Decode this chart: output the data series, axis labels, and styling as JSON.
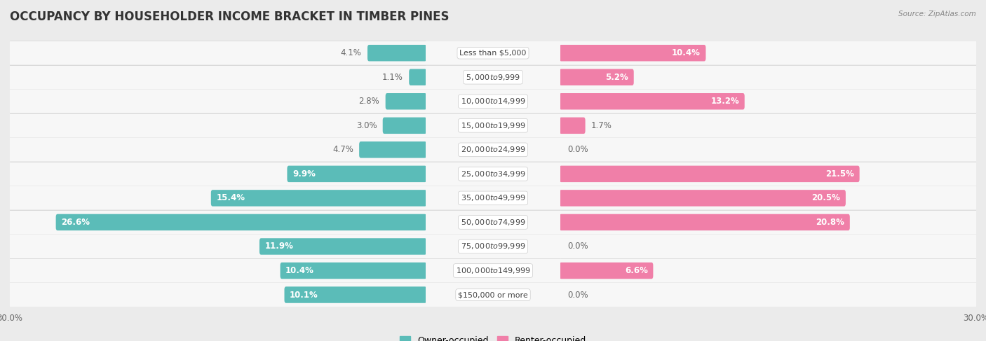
{
  "title": "OCCUPANCY BY HOUSEHOLDER INCOME BRACKET IN TIMBER PINES",
  "source": "Source: ZipAtlas.com",
  "categories": [
    "Less than $5,000",
    "$5,000 to $9,999",
    "$10,000 to $14,999",
    "$15,000 to $19,999",
    "$20,000 to $24,999",
    "$25,000 to $34,999",
    "$35,000 to $49,999",
    "$50,000 to $74,999",
    "$75,000 to $99,999",
    "$100,000 to $149,999",
    "$150,000 or more"
  ],
  "owner_values": [
    4.1,
    1.1,
    2.8,
    3.0,
    4.7,
    9.9,
    15.4,
    26.6,
    11.9,
    10.4,
    10.1
  ],
  "renter_values": [
    10.4,
    5.2,
    13.2,
    1.7,
    0.0,
    21.5,
    20.5,
    20.8,
    0.0,
    6.6,
    0.0
  ],
  "owner_color": "#5BBCB8",
  "renter_color": "#F07FA8",
  "owner_label": "Owner-occupied",
  "renter_label": "Renter-occupied",
  "bar_height": 0.52,
  "xlim": 30.0,
  "background_color": "#ebebeb",
  "row_bg_color": "#f7f7f7",
  "row_border_color": "#d8d8d8",
  "title_fontsize": 12,
  "label_fontsize": 8.5,
  "category_fontsize": 8.0,
  "axis_label_fontsize": 8.5,
  "pct_color_outside": "#666666",
  "pct_color_inside": "#ffffff"
}
